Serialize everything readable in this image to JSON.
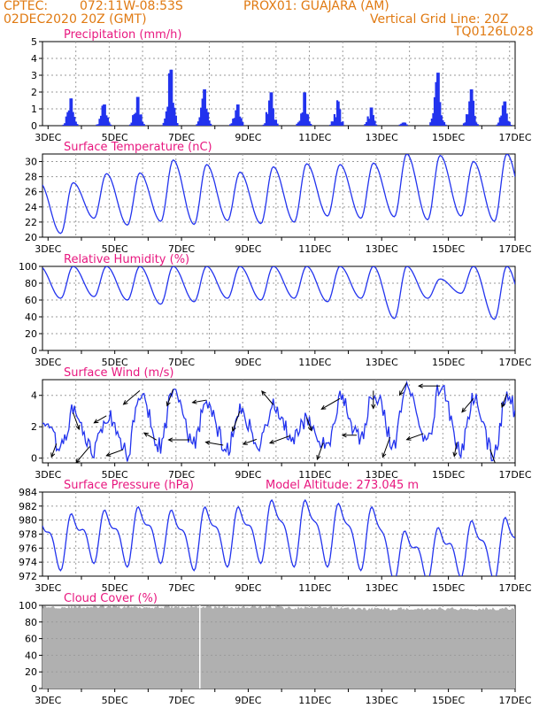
{
  "header": {
    "source": "CPTEC:",
    "location": "072:11W-08:53S",
    "station": "PROX01: GUAJARA (AM)",
    "run": "02DEC2020 20Z (GMT)",
    "grid_note": "Vertical Grid Line: 20Z",
    "code": "TQ0126L028"
  },
  "colors": {
    "header": "#e07a12",
    "title": "#e8177f",
    "series": "#2233ee",
    "cloud": "#b0b0b0",
    "wind_arrow": "#000000"
  },
  "x_axis": {
    "tick_labels": [
      "3DEC",
      "5DEC",
      "7DEC",
      "9DEC",
      "11DEC",
      "13DEC",
      "15DEC",
      "17DEC"
    ],
    "start": "2020-12-02T20:00Z",
    "end": "2020-12-17T00:00Z",
    "vertical_grid_hour_utc": 20
  },
  "chart_data": [
    {
      "type": "bar",
      "title": "Precipitation (mm/h)",
      "ylim": [
        0,
        5
      ],
      "yticks": [
        0,
        1,
        2,
        3,
        4,
        5
      ],
      "days": [
        3,
        4,
        5,
        6,
        7,
        8,
        9,
        10,
        11,
        12,
        13,
        14,
        15,
        16
      ],
      "daily_peak": [
        1.8,
        1.4,
        1.9,
        3.7,
        2.4,
        1.4,
        2.2,
        2.2,
        1.6,
        1.2,
        0.2,
        3.5,
        2.4,
        1.6
      ]
    },
    {
      "type": "line",
      "title": "Surface Temperature (nC)",
      "ylim": [
        20,
        31
      ],
      "yticks": [
        20,
        22,
        24,
        26,
        28,
        30
      ],
      "days": [
        3,
        4,
        5,
        6,
        7,
        8,
        9,
        10,
        11,
        12,
        13,
        14,
        15,
        16
      ],
      "daily_max": [
        27.2,
        28.4,
        28.5,
        30.2,
        29.6,
        28.6,
        29.3,
        29.7,
        29.6,
        29.8,
        31.0,
        30.8,
        30.0,
        31.0
      ],
      "daily_min": [
        20.5,
        22.5,
        21.6,
        22.1,
        21.7,
        22.2,
        21.8,
        22.0,
        22.8,
        22.5,
        22.7,
        22.3,
        22.8,
        22.1
      ]
    },
    {
      "type": "line",
      "title": "Relative Humidity (%)",
      "ylim": [
        0,
        100
      ],
      "yticks": [
        0,
        20,
        40,
        60,
        80,
        100
      ],
      "days": [
        3,
        4,
        5,
        6,
        7,
        8,
        9,
        10,
        11,
        12,
        13,
        14,
        15,
        16
      ],
      "daily_max": [
        100,
        100,
        100,
        100,
        100,
        100,
        100,
        100,
        100,
        100,
        100,
        85,
        100,
        100
      ],
      "daily_min": [
        62,
        64,
        60,
        55,
        58,
        62,
        60,
        62,
        58,
        62,
        38,
        62,
        68,
        37
      ]
    },
    {
      "type": "line",
      "title": "Surface Wind (m/s)",
      "ylim": [
        -0.3,
        5
      ],
      "yticks": [
        0,
        2,
        4
      ],
      "days": [
        3,
        4,
        5,
        6,
        7,
        8,
        9,
        10,
        11,
        12,
        13,
        14,
        15,
        16
      ],
      "daily_max": [
        2.9,
        2.7,
        4.3,
        4.4,
        3.7,
        3.0,
        3.4,
        2.6,
        3.8,
        4.3,
        4.8,
        4.6,
        3.8,
        4.1
      ],
      "daily_min": [
        0.7,
        0.5,
        0.3,
        0.8,
        0.8,
        0.5,
        1.0,
        1.2,
        0.8,
        1.2,
        1.0,
        1.2,
        0.6,
        0.2
      ],
      "arrow_dir_deg": [
        200,
        160,
        220,
        240,
        250,
        230,
        300,
        200,
        270,
        260,
        280,
        200,
        250,
        320,
        250,
        160,
        200,
        240,
        270,
        180,
        200,
        210,
        250,
        270,
        190,
        220,
        160,
        200
      ]
    },
    {
      "type": "line",
      "title": "Surface Pressure (hPa)",
      "annotation": "Model Altitude: 273.045 m",
      "ylim": [
        972,
        984
      ],
      "yticks": [
        972,
        974,
        976,
        978,
        980,
        982,
        984
      ],
      "days": [
        3,
        4,
        5,
        6,
        7,
        8,
        9,
        10,
        11,
        12,
        13,
        14,
        15,
        16
      ],
      "daily_max": [
        980.5,
        981.0,
        981.5,
        981.0,
        981.5,
        981.5,
        982.5,
        982.5,
        982.0,
        981.5,
        978.0,
        978.5,
        979.5,
        980.0
      ],
      "daily_min": [
        974.0,
        975.0,
        974.5,
        975.0,
        974.0,
        974.5,
        975.0,
        974.5,
        974.5,
        974.0,
        972.5,
        972.5,
        973.0,
        972.5
      ]
    },
    {
      "type": "area",
      "title": "Cloud Cover (%)",
      "ylim": [
        0,
        100
      ],
      "yticks": [
        0,
        20,
        40,
        60,
        80,
        100
      ],
      "days": [
        3,
        4,
        5,
        6,
        7,
        8,
        9,
        10,
        11,
        12,
        13,
        14,
        15,
        16
      ],
      "daily_mean": [
        98,
        98,
        98,
        98,
        98,
        98,
        98,
        97,
        97,
        96,
        96,
        96,
        96,
        96
      ]
    }
  ]
}
